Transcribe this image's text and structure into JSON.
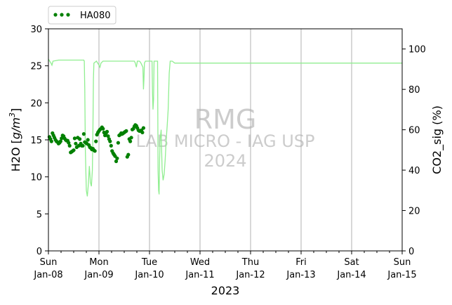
{
  "chart_data": {
    "type": "line",
    "xlabel": "2023",
    "ylabel_left": "H2O [g/m³]",
    "ylabel_left_prefix": "H2O [",
    "ylabel_left_unit_main": "g/m",
    "ylabel_left_unit_sup": "3",
    "ylabel_left_suffix": "]",
    "ylabel_right": "CO2_sig (%)",
    "ylim_left": [
      0,
      30
    ],
    "ylim_right": [
      0,
      110
    ],
    "xlim_days": [
      0,
      7
    ],
    "x_ticks": [
      {
        "day": "Sun",
        "date": "Jan-08"
      },
      {
        "day": "Mon",
        "date": "Jan-09"
      },
      {
        "day": "Tue",
        "date": "Jan-10"
      },
      {
        "day": "Wed",
        "date": "Jan-11"
      },
      {
        "day": "Thu",
        "date": "Jan-12"
      },
      {
        "day": "Fri",
        "date": "Jan-13"
      },
      {
        "day": "Sat",
        "date": "Jan-14"
      },
      {
        "day": "Sun",
        "date": "Jan-15"
      }
    ],
    "y_ticks_left": [
      "0",
      "5",
      "10",
      "15",
      "20",
      "25",
      "30"
    ],
    "y_ticks_right": [
      "0",
      "20",
      "40",
      "60",
      "80",
      "100"
    ],
    "grid": "vertical-major",
    "legend": {
      "position": "top-left-outside",
      "entries": [
        "HA080"
      ]
    },
    "colors": {
      "h2o": "#008000",
      "co2": "#90ee90",
      "watermark": "#bbbbbb"
    },
    "watermark": {
      "line1": "RMG",
      "line2": "LAB MICRO - IAG USP",
      "line3": "2024"
    },
    "series": [
      {
        "name": "HA080",
        "axis": "left",
        "style": "dots",
        "points": [
          [
            0.02,
            15.4
          ],
          [
            0.04,
            15.1
          ],
          [
            0.06,
            14.8
          ],
          [
            0.08,
            15.9
          ],
          [
            0.1,
            15.6
          ],
          [
            0.12,
            15.3
          ],
          [
            0.14,
            15.0
          ],
          [
            0.16,
            14.8
          ],
          [
            0.18,
            14.7
          ],
          [
            0.2,
            14.5
          ],
          [
            0.22,
            14.6
          ],
          [
            0.24,
            14.8
          ],
          [
            0.26,
            15.2
          ],
          [
            0.28,
            15.6
          ],
          [
            0.3,
            15.5
          ],
          [
            0.32,
            15.2
          ],
          [
            0.34,
            15.0
          ],
          [
            0.36,
            14.9
          ],
          [
            0.38,
            14.9
          ],
          [
            0.4,
            14.6
          ],
          [
            0.42,
            14.2
          ],
          [
            0.44,
            13.3
          ],
          [
            0.46,
            13.4
          ],
          [
            0.48,
            13.5
          ],
          [
            0.5,
            13.6
          ],
          [
            0.52,
            15.2
          ],
          [
            0.54,
            14.5
          ],
          [
            0.56,
            14.0
          ],
          [
            0.58,
            15.3
          ],
          [
            0.6,
            14.2
          ],
          [
            0.62,
            15.1
          ],
          [
            0.64,
            14.5
          ],
          [
            0.66,
            14.2
          ],
          [
            0.68,
            14.2
          ],
          [
            0.7,
            15.8
          ],
          [
            0.72,
            14.7
          ],
          [
            0.74,
            14.6
          ],
          [
            0.76,
            14.5
          ],
          [
            0.78,
            15.0
          ],
          [
            0.8,
            14.3
          ],
          [
            0.82,
            14.0
          ],
          [
            0.84,
            13.9
          ],
          [
            0.86,
            13.7
          ],
          [
            0.88,
            13.8
          ],
          [
            0.9,
            13.6
          ],
          [
            0.92,
            13.5
          ],
          [
            0.94,
            14.8
          ],
          [
            0.96,
            15.7
          ],
          [
            0.98,
            16.0
          ],
          [
            1.0,
            16.2
          ],
          [
            1.02,
            16.4
          ],
          [
            1.04,
            16.5
          ],
          [
            1.06,
            16.7
          ],
          [
            1.08,
            16.5
          ],
          [
            1.1,
            16.0
          ],
          [
            1.12,
            15.6
          ],
          [
            1.14,
            15.9
          ],
          [
            1.16,
            16.1
          ],
          [
            1.18,
            15.5
          ],
          [
            1.2,
            15.1
          ],
          [
            1.22,
            14.8
          ],
          [
            1.24,
            14.2
          ],
          [
            1.26,
            13.5
          ],
          [
            1.28,
            13.2
          ],
          [
            1.3,
            13.0
          ],
          [
            1.32,
            12.8
          ],
          [
            1.34,
            12.1
          ],
          [
            1.36,
            12.5
          ],
          [
            1.38,
            14.6
          ],
          [
            1.4,
            15.6
          ],
          [
            1.42,
            15.7
          ],
          [
            1.44,
            15.9
          ],
          [
            1.46,
            15.8
          ],
          [
            1.48,
            15.9
          ],
          [
            1.5,
            16.0
          ],
          [
            1.52,
            16.1
          ],
          [
            1.54,
            16.2
          ],
          [
            1.56,
            12.7
          ],
          [
            1.58,
            13.0
          ],
          [
            1.6,
            15.1
          ],
          [
            1.62,
            14.8
          ],
          [
            1.64,
            15.3
          ],
          [
            1.66,
            16.4
          ],
          [
            1.68,
            16.5
          ],
          [
            1.7,
            16.8
          ],
          [
            1.72,
            17.0
          ],
          [
            1.74,
            16.9
          ],
          [
            1.76,
            16.6
          ],
          [
            1.78,
            16.3
          ],
          [
            1.8,
            16.2
          ],
          [
            1.82,
            16.2
          ],
          [
            1.84,
            16.3
          ],
          [
            1.86,
            16.0
          ],
          [
            1.88,
            16.6
          ]
        ]
      },
      {
        "name": "",
        "axis": "right",
        "style": "line",
        "points": [
          [
            0.0,
            95
          ],
          [
            0.05,
            93
          ],
          [
            0.07,
            92
          ],
          [
            0.09,
            94
          ],
          [
            0.2,
            94.5
          ],
          [
            0.4,
            94.5
          ],
          [
            0.6,
            94.5
          ],
          [
            0.7,
            94.5
          ],
          [
            0.71,
            94
          ],
          [
            0.72,
            80
          ],
          [
            0.73,
            50
          ],
          [
            0.75,
            30
          ],
          [
            0.77,
            27
          ],
          [
            0.79,
            33
          ],
          [
            0.81,
            42
          ],
          [
            0.83,
            34
          ],
          [
            0.85,
            32
          ],
          [
            0.87,
            40
          ],
          [
            0.88,
            60
          ],
          [
            0.89,
            85
          ],
          [
            0.9,
            93
          ],
          [
            0.95,
            94
          ],
          [
            1.0,
            92
          ],
          [
            1.02,
            91
          ],
          [
            1.04,
            93
          ],
          [
            1.08,
            94
          ],
          [
            1.2,
            94
          ],
          [
            1.4,
            94
          ],
          [
            1.7,
            94
          ],
          [
            1.72,
            93
          ],
          [
            1.74,
            91
          ],
          [
            1.76,
            94
          ],
          [
            1.78,
            94
          ],
          [
            1.8,
            94
          ],
          [
            1.82,
            93.5
          ],
          [
            1.83,
            93
          ],
          [
            1.85,
            92
          ],
          [
            1.87,
            91
          ],
          [
            1.88,
            80
          ],
          [
            1.89,
            85
          ],
          [
            1.9,
            93
          ],
          [
            1.92,
            94
          ],
          [
            2.0,
            94
          ],
          [
            2.05,
            94
          ],
          [
            2.06,
            78
          ],
          [
            2.07,
            70
          ],
          [
            2.08,
            75
          ],
          [
            2.09,
            94
          ],
          [
            2.1,
            94
          ],
          [
            2.14,
            94
          ],
          [
            2.16,
            94
          ],
          [
            2.17,
            40
          ],
          [
            2.18,
            30
          ],
          [
            2.19,
            28
          ],
          [
            2.2,
            45
          ],
          [
            2.21,
            55
          ],
          [
            2.23,
            60
          ],
          [
            2.25,
            40
          ],
          [
            2.27,
            35
          ],
          [
            2.29,
            38
          ],
          [
            2.31,
            45
          ],
          [
            2.33,
            55
          ],
          [
            2.35,
            62
          ],
          [
            2.37,
            70
          ],
          [
            2.39,
            88
          ],
          [
            2.41,
            94
          ],
          [
            2.45,
            94
          ],
          [
            2.5,
            93
          ],
          [
            3.0,
            93
          ],
          [
            4.0,
            93
          ],
          [
            5.0,
            93
          ],
          [
            6.0,
            93
          ],
          [
            7.0,
            93
          ]
        ]
      }
    ]
  }
}
